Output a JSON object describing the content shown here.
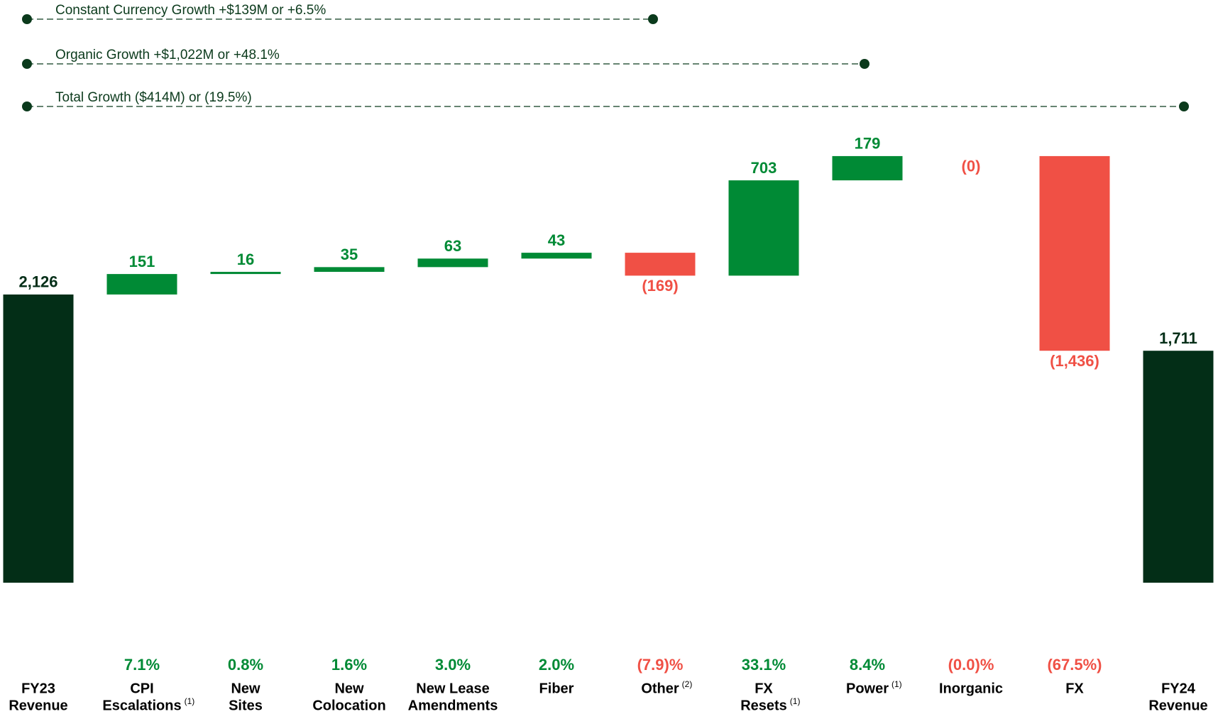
{
  "chart_data": {
    "type": "waterfall",
    "annotations": [
      {
        "text": "Constant Currency Growth +$139M or +6.5%"
      },
      {
        "text": "Organic Growth +$1,022M or +48.1%"
      },
      {
        "text": "Total Growth ($414M) or (19.5%)"
      }
    ],
    "categories": [
      [
        "FY23",
        "Revenue"
      ],
      [
        "CPI",
        "Escalations"
      ],
      [
        "New",
        "Sites"
      ],
      [
        "New",
        "Colocation"
      ],
      [
        "New Lease",
        "Amendments"
      ],
      [
        "Fiber"
      ],
      [
        "Other"
      ],
      [
        "FX",
        "Resets"
      ],
      [
        "Power"
      ],
      [
        "Inorganic"
      ],
      [
        "FX"
      ],
      [
        "FY24",
        "Revenue"
      ]
    ],
    "footnotes": [
      null,
      "(1)",
      null,
      null,
      null,
      null,
      "(2)",
      "(1)",
      "(1)",
      null,
      null,
      null
    ],
    "values": [
      2126,
      151,
      16,
      35,
      63,
      43,
      -169,
      703,
      179,
      0,
      -1436,
      1711
    ],
    "value_labels": [
      "2,126",
      "151",
      "16",
      "35",
      "63",
      "43",
      "(169)",
      "703",
      "179",
      "(0)",
      "(1,436)",
      "1,711"
    ],
    "percent_labels": [
      null,
      "7.1%",
      "0.8%",
      "1.6%",
      "3.0%",
      "2.0%",
      "(7.9)%",
      "33.1%",
      "8.4%",
      "(0.0)%",
      "(67.5%)",
      null
    ],
    "colors": {
      "total": "#032e17",
      "increase": "#008a35",
      "decrease": "#f05045"
    }
  }
}
